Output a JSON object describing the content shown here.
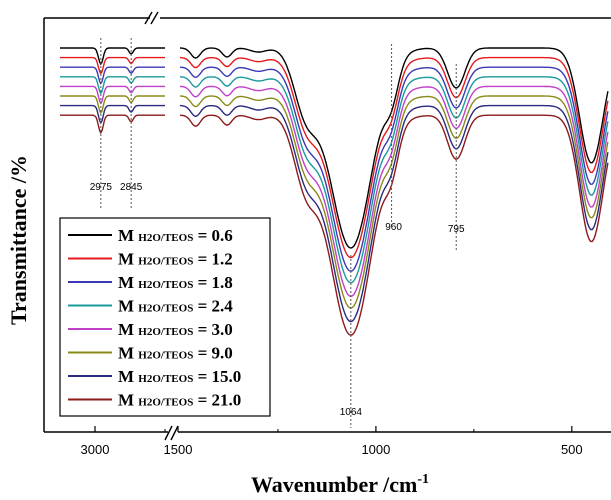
{
  "chart_data": {
    "type": "line",
    "title": "",
    "xlabel": "Wavenumber /cm",
    "xlabel_sup": "-1",
    "ylabel": "Transmittance /%",
    "x_axis": {
      "reversed": true,
      "broken": true,
      "segments": [
        [
          3150,
          2700
        ],
        [
          1500,
          400
        ]
      ],
      "ticks": [
        {
          "value": 3000,
          "label": "3000"
        },
        {
          "value": 1500,
          "label": "1500"
        },
        {
          "value": 1000,
          "label": "1000"
        },
        {
          "value": 500,
          "label": "500"
        }
      ]
    },
    "y_axis": {
      "ticks_shown": false,
      "range": [
        0,
        100
      ]
    },
    "annotations": [
      {
        "x": 2975,
        "label": "2975"
      },
      {
        "x": 2845,
        "label": "2845"
      },
      {
        "x": 960,
        "label": "960"
      },
      {
        "x": 795,
        "label": "795"
      },
      {
        "x": 1064,
        "label": "1064"
      }
    ],
    "legend": {
      "position": "bottom-left",
      "prefix": "M",
      "subscript": "H2O/TEOS",
      "equals": "="
    },
    "series": [
      {
        "name": "0.6",
        "color": "#000000",
        "offset": 0.0,
        "depth": 1.0
      },
      {
        "name": "1.2",
        "color": "#e41a1c",
        "offset": 3.0,
        "depth": 1.0
      },
      {
        "name": "1.8",
        "color": "#3a3ab8",
        "offset": 6.0,
        "depth": 1.02
      },
      {
        "name": "2.4",
        "color": "#1a9a9a",
        "offset": 9.0,
        "depth": 1.03
      },
      {
        "name": "3.0",
        "color": "#c040c8",
        "offset": 12.0,
        "depth": 1.05
      },
      {
        "name": "9.0",
        "color": "#8a8a1a",
        "offset": 15.0,
        "depth": 1.06
      },
      {
        "name": "15.0",
        "color": "#2a2a80",
        "offset": 18.0,
        "depth": 1.08
      },
      {
        "name": "21.0",
        "color": "#8b1a1a",
        "offset": 21.0,
        "depth": 1.1
      }
    ],
    "grid": false
  }
}
